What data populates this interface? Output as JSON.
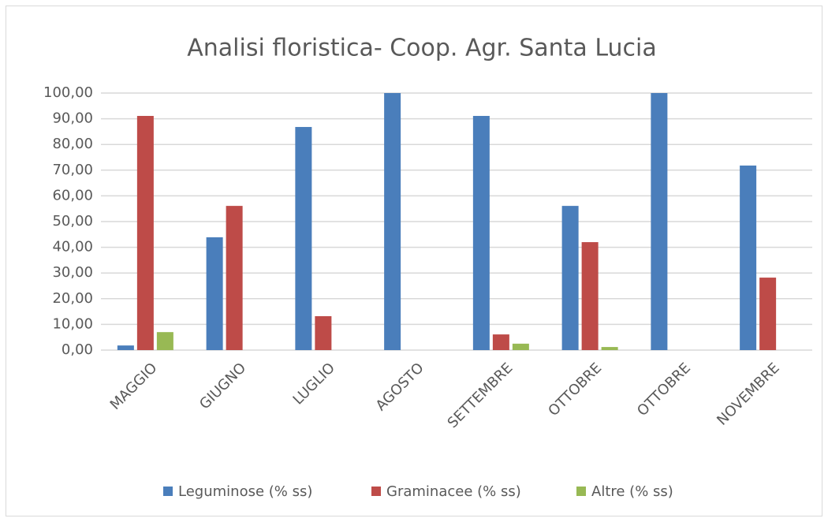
{
  "chart_data": {
    "type": "bar",
    "title": "Analisi floristica- Coop. Agr. Santa Lucia",
    "categories": [
      "MAGGIO",
      "GIUGNO",
      "LUGLIO",
      "AGOSTO",
      "SETTEMBRE",
      "OTTOBRE",
      "OTTOBRE",
      "NOVEMBRE"
    ],
    "series": [
      {
        "name": "Leguminose (% ss)",
        "color": "#4a7ebb",
        "values": [
          1.8,
          43.9,
          86.8,
          100,
          91.1,
          56.1,
          100,
          71.8
        ]
      },
      {
        "name": "Graminacee (% ss)",
        "color": "#be4b48",
        "values": [
          91.1,
          56.1,
          13.2,
          0,
          6.1,
          42,
          0,
          28.2
        ]
      },
      {
        "name": "Altre (% ss)",
        "color": "#98b954",
        "values": [
          7,
          0,
          0,
          0,
          2.5,
          1.2,
          0,
          0
        ]
      }
    ],
    "ylim": [
      0,
      100
    ],
    "yticks": [
      {
        "value": 0,
        "label": "0,00"
      },
      {
        "value": 10,
        "label": "10,00"
      },
      {
        "value": 20,
        "label": "20,00"
      },
      {
        "value": 30,
        "label": "30,00"
      },
      {
        "value": 40,
        "label": "40,00"
      },
      {
        "value": 50,
        "label": "50,00"
      },
      {
        "value": 60,
        "label": "60,00"
      },
      {
        "value": 70,
        "label": "70,00"
      },
      {
        "value": 80,
        "label": "80,00"
      },
      {
        "value": 90,
        "label": "90,00"
      },
      {
        "value": 100,
        "label": "100,00"
      }
    ],
    "grid": true,
    "legend": "bottom"
  }
}
